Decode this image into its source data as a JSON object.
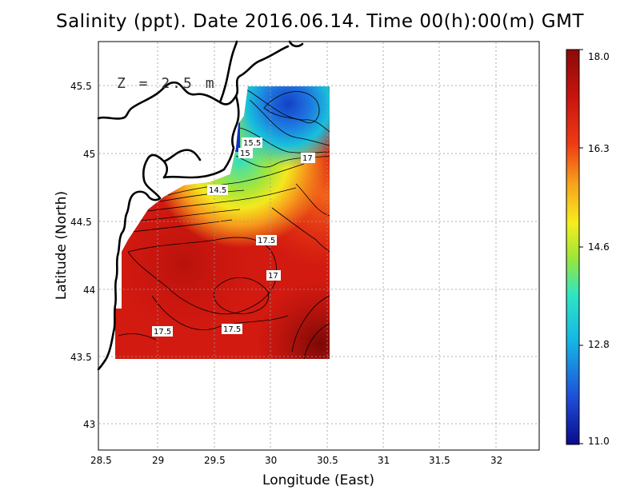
{
  "title": "Salinity (ppt). Date 2016.06.14. Time 00(h):00(m) GMT",
  "depth_label": "Z = 2.5 m",
  "chart_data": {
    "type": "heatmap",
    "title": "Salinity (ppt). Date 2016.06.14. Time 00(h):00(m) GMT",
    "xlabel": "Longitude (East)",
    "ylabel": "Latitude (North)",
    "xlim": [
      28.5,
      32.4
    ],
    "ylim": [
      42.8,
      45.75
    ],
    "x_ticks": [
      "28.5",
      "29",
      "29.5",
      "30",
      "30.5",
      "31",
      "31.5",
      "32"
    ],
    "y_ticks": [
      "43",
      "43.5",
      "44",
      "44.5",
      "45",
      "45.5"
    ],
    "grid": true,
    "colorbar": {
      "min": 11.0,
      "max": 18.0,
      "tick_labels": [
        "11.0",
        "12.8",
        "14.6",
        "16.3",
        "18.0"
      ],
      "tick_values": [
        11.0,
        12.8,
        14.6,
        16.3,
        18.0
      ]
    },
    "contour_labels": [
      {
        "text": "15.5",
        "lon": 29.87,
        "lat": 45.08
      },
      {
        "text": "15",
        "lon": 29.83,
        "lat": 45.0
      },
      {
        "text": "17",
        "lon": 30.32,
        "lat": 44.97
      },
      {
        "text": "14.5",
        "lon": 29.62,
        "lat": 44.74
      },
      {
        "text": "17.5",
        "lon": 29.97,
        "lat": 44.39
      },
      {
        "text": "17",
        "lon": 30.01,
        "lat": 44.1
      },
      {
        "text": "17.5",
        "lon": 29.04,
        "lat": 43.68
      },
      {
        "text": "17.5",
        "lon": 29.67,
        "lat": 43.7
      }
    ]
  },
  "colors": {
    "scale": [
      "#0a0a8c",
      "#1e4fd8",
      "#15b4e6",
      "#2ee6c2",
      "#9ae63a",
      "#f5ee1e",
      "#f7a21c",
      "#ef3b14",
      "#c8140e",
      "#8b0a08"
    ]
  }
}
